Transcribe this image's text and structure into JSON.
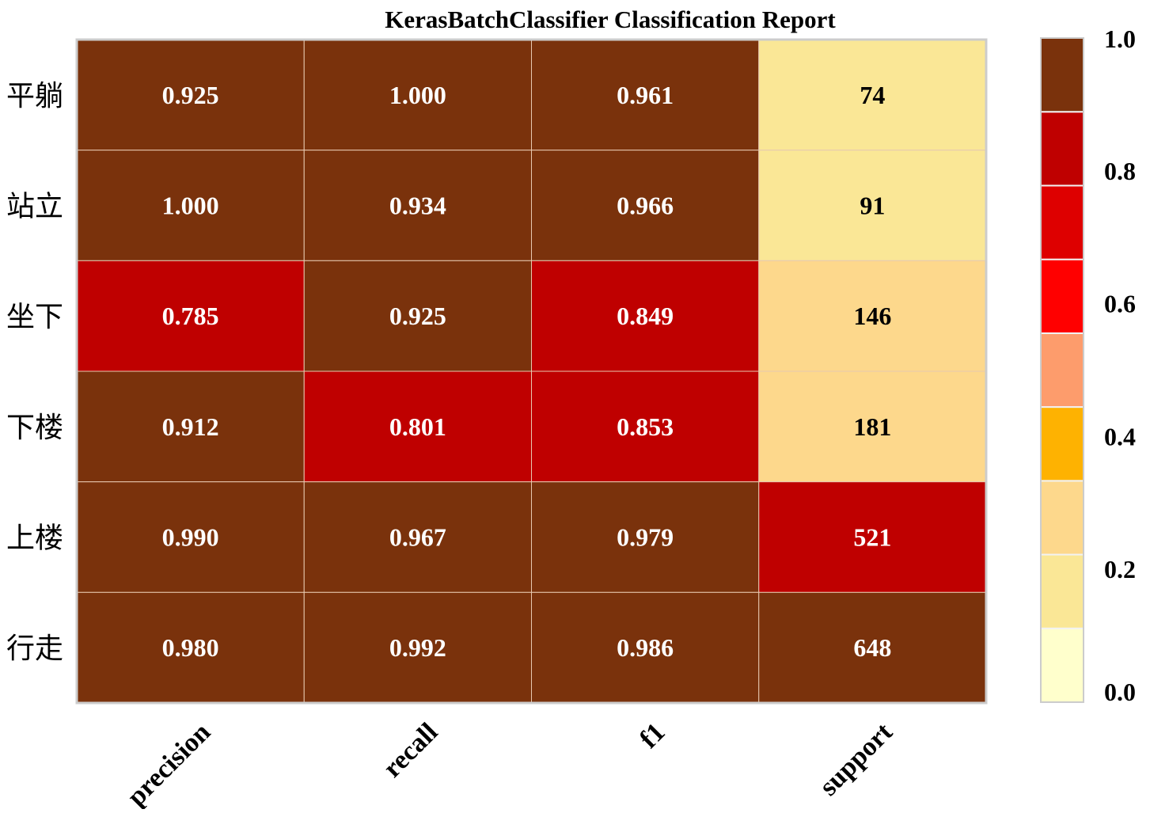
{
  "chart_data": {
    "type": "heatmap",
    "title": "KerasBatchClassifier Classification Report",
    "rows": [
      "平躺",
      "站立",
      "坐下",
      "下楼",
      "上楼",
      "行走"
    ],
    "columns": [
      "precision",
      "recall",
      "f1",
      "support"
    ],
    "values": [
      [
        0.925,
        1.0,
        0.961,
        74
      ],
      [
        1.0,
        0.934,
        0.966,
        91
      ],
      [
        0.785,
        0.925,
        0.849,
        146
      ],
      [
        0.912,
        0.801,
        0.853,
        181
      ],
      [
        0.99,
        0.967,
        0.979,
        521
      ],
      [
        0.98,
        0.992,
        0.986,
        648
      ]
    ],
    "cell_labels": [
      [
        "0.925",
        "1.000",
        "0.961",
        "74"
      ],
      [
        "1.000",
        "0.934",
        "0.966",
        "91"
      ],
      [
        "0.785",
        "0.925",
        "0.849",
        "146"
      ],
      [
        "0.912",
        "0.801",
        "0.853",
        "181"
      ],
      [
        "0.990",
        "0.967",
        "0.979",
        "521"
      ],
      [
        "0.980",
        "0.992",
        "0.986",
        "648"
      ]
    ],
    "support_max": 648,
    "colorbar": {
      "range": [
        0.0,
        1.0
      ],
      "ticks": [
        "0.0",
        "0.2",
        "0.4",
        "0.6",
        "0.8",
        "1.0"
      ],
      "bins": 9,
      "colors": [
        "#FFFFCC",
        "#FAE796",
        "#FDD88C",
        "#FEB201",
        "#FD9C6C",
        "#FF0000",
        "#DE0000",
        "#BF0000",
        "#7A320C"
      ]
    },
    "text_colors": {
      "dark_cell": "#FFFFFF",
      "light_cell": "#000000"
    },
    "grid": true
  }
}
